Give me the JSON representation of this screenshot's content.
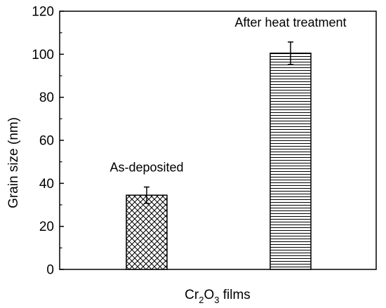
{
  "chart_data": {
    "type": "bar",
    "categories": [
      "As-deposited",
      "After heat treatment"
    ],
    "values": [
      34.5,
      100.5
    ],
    "error": [
      3.8,
      5.2
    ],
    "patterns": [
      "crosshatch",
      "horizontal-lines"
    ],
    "xlabel": {
      "main": "Cr",
      "sub1": "2",
      "mid": "O",
      "sub2": "3",
      "tail": " films"
    },
    "ylabel": "Grain size (nm)",
    "ylim": [
      0,
      120
    ],
    "yticks": [
      "0",
      "20",
      "40",
      "60",
      "80",
      "100",
      "120"
    ],
    "grid": false,
    "legend": "none"
  }
}
